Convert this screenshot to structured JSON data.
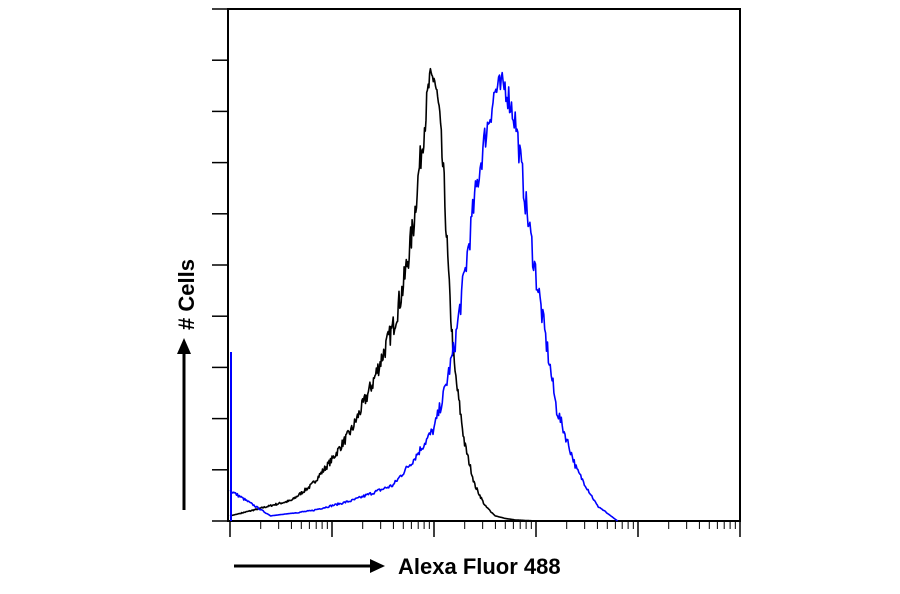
{
  "chart_data": {
    "type": "line",
    "chart_kind": "flow cytometry histogram overlay",
    "title": "",
    "xlabel": "Alexa Fluor 488",
    "ylabel": "# Cells",
    "x_scale": "log",
    "xlim": [
      1,
      100000
    ],
    "ylim": [
      0,
      100
    ],
    "x_tick_labels_shown": false,
    "y_tick_labels_shown": false,
    "y_major_ticks": [
      0,
      10,
      20,
      30,
      40,
      50,
      60,
      70,
      80,
      90,
      100
    ],
    "grid": false,
    "legend": "none",
    "series": [
      {
        "color": "#000000",
        "x": [
          1,
          1.6,
          2.5,
          4,
          6.3,
          10,
          15.8,
          25.1,
          39.8,
          50.1,
          63.1,
          70.8,
          79.4,
          89.1,
          100,
          112,
          126,
          141,
          158,
          200,
          251,
          316,
          398,
          501,
          631,
          1000
        ],
        "y": [
          1,
          2,
          3,
          4,
          7,
          12,
          18,
          27,
          38,
          46,
          58,
          68,
          76,
          85,
          87,
          80,
          65,
          45,
          30,
          15,
          7,
          3,
          1,
          0.5,
          0.2,
          0
        ]
      },
      {
        "color": "#0000ff",
        "x": [
          1,
          2.5,
          6.3,
          15.8,
          39.8,
          63.1,
          100,
          125.9,
          158.5,
          199.5,
          251.2,
          316.2,
          398.1,
          501.2,
          631,
          794.3,
          1000,
          1258.9,
          1584.9,
          2511.9,
          3981.1,
          6309.6
        ],
        "y": [
          6,
          1,
          2,
          4,
          7,
          12,
          18,
          25,
          34,
          48,
          63,
          75,
          84,
          85,
          78,
          62,
          48,
          35,
          22,
          10,
          3,
          0
        ]
      }
    ]
  }
}
